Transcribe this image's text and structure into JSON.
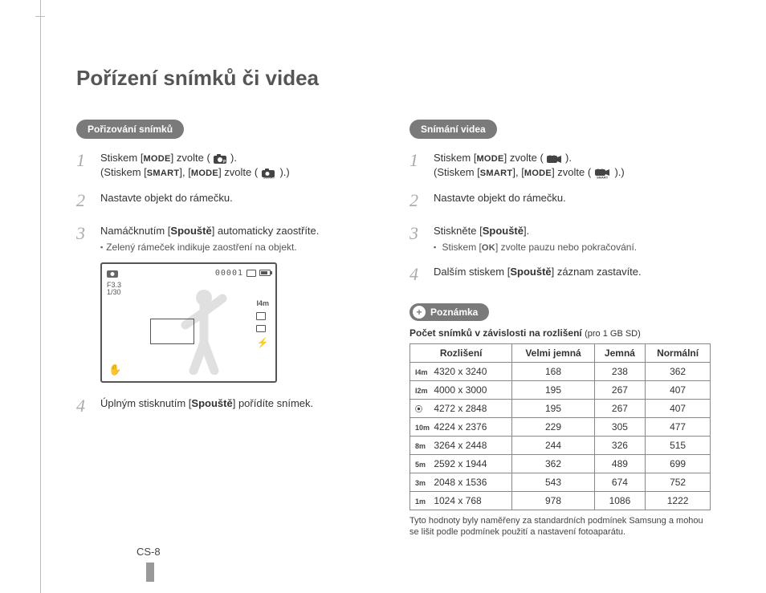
{
  "page": {
    "title": "Pořízení snímků či videa",
    "page_number": "CS-8"
  },
  "buttons": {
    "mode": "MODE",
    "smart": "SMART",
    "ok": "OK",
    "shutter": "Spouště"
  },
  "left": {
    "pill": "Pořizování snímků",
    "step1_a": "Stiskem [",
    "step1_b": "] zvolte (",
    "step1_c": ").",
    "step1_sub_a": "(Stiskem [",
    "step1_sub_b": "], [",
    "step1_sub_c": "] zvolte (",
    "step1_sub_d": ").)",
    "step2": "Nastavte objekt do rámečku.",
    "step3_a": "Namáčknutím [",
    "step3_b": "] automaticky zaostříte.",
    "step3_sub": "Zelený rámeček indikuje zaostření na objekt.",
    "viewfinder": {
      "counter": "00001",
      "f_stop": "F3.3",
      "shutter": "1/30"
    },
    "step4_a": "Úplným stisknutím [",
    "step4_b": "] pořídíte snímek."
  },
  "right": {
    "pill": "Snímání videa",
    "step1_a": "Stiskem [",
    "step1_b": "] zvolte (",
    "step1_c": ").",
    "step1_sub_a": "(Stiskem [",
    "step1_sub_b": "], [",
    "step1_sub_c": "] zvolte (",
    "step1_sub_d": ").)",
    "step2": "Nastavte objekt do rámečku.",
    "step3_a": "Stiskněte [",
    "step3_b": "].",
    "step3_sub_a": "Stiskem [",
    "step3_sub_b": "] zvolte pauzu nebo pokračování.",
    "step4_a": "Dalším stiskem [",
    "step4_b": "] záznam zastavíte.",
    "note_pill": "Poznámka",
    "note_title": "Počet snímků v závislosti na rozlišení",
    "note_title_sub": "(pro 1 GB SD)",
    "table": {
      "headers": [
        "Rozlišení",
        "Velmi jemná",
        "Jemná",
        "Normální"
      ],
      "rows": [
        {
          "ico": "I4m",
          "res": "4320 x 3240",
          "v": [
            "168",
            "238",
            "362"
          ]
        },
        {
          "ico": "I2m",
          "res": "4000 x 3000",
          "v": [
            "195",
            "267",
            "407"
          ]
        },
        {
          "ico": "⦿",
          "res": "4272 x 2848",
          "v": [
            "195",
            "267",
            "407"
          ]
        },
        {
          "ico": "10m",
          "res": "4224 x 2376",
          "v": [
            "229",
            "305",
            "477"
          ]
        },
        {
          "ico": "8m",
          "res": "3264 x 2448",
          "v": [
            "244",
            "326",
            "515"
          ]
        },
        {
          "ico": "5m",
          "res": "2592 x 1944",
          "v": [
            "362",
            "489",
            "699"
          ]
        },
        {
          "ico": "3m",
          "res": "2048 x 1536",
          "v": [
            "543",
            "674",
            "752"
          ]
        },
        {
          "ico": "1m",
          "res": "1024 x 768",
          "v": [
            "978",
            "1086",
            "1222"
          ]
        }
      ]
    },
    "footnote": "Tyto hodnoty byly naměřeny za standardních podmínek Samsung a mohou se lišit podle podmínek použití a nastavení fotoaparátu."
  }
}
